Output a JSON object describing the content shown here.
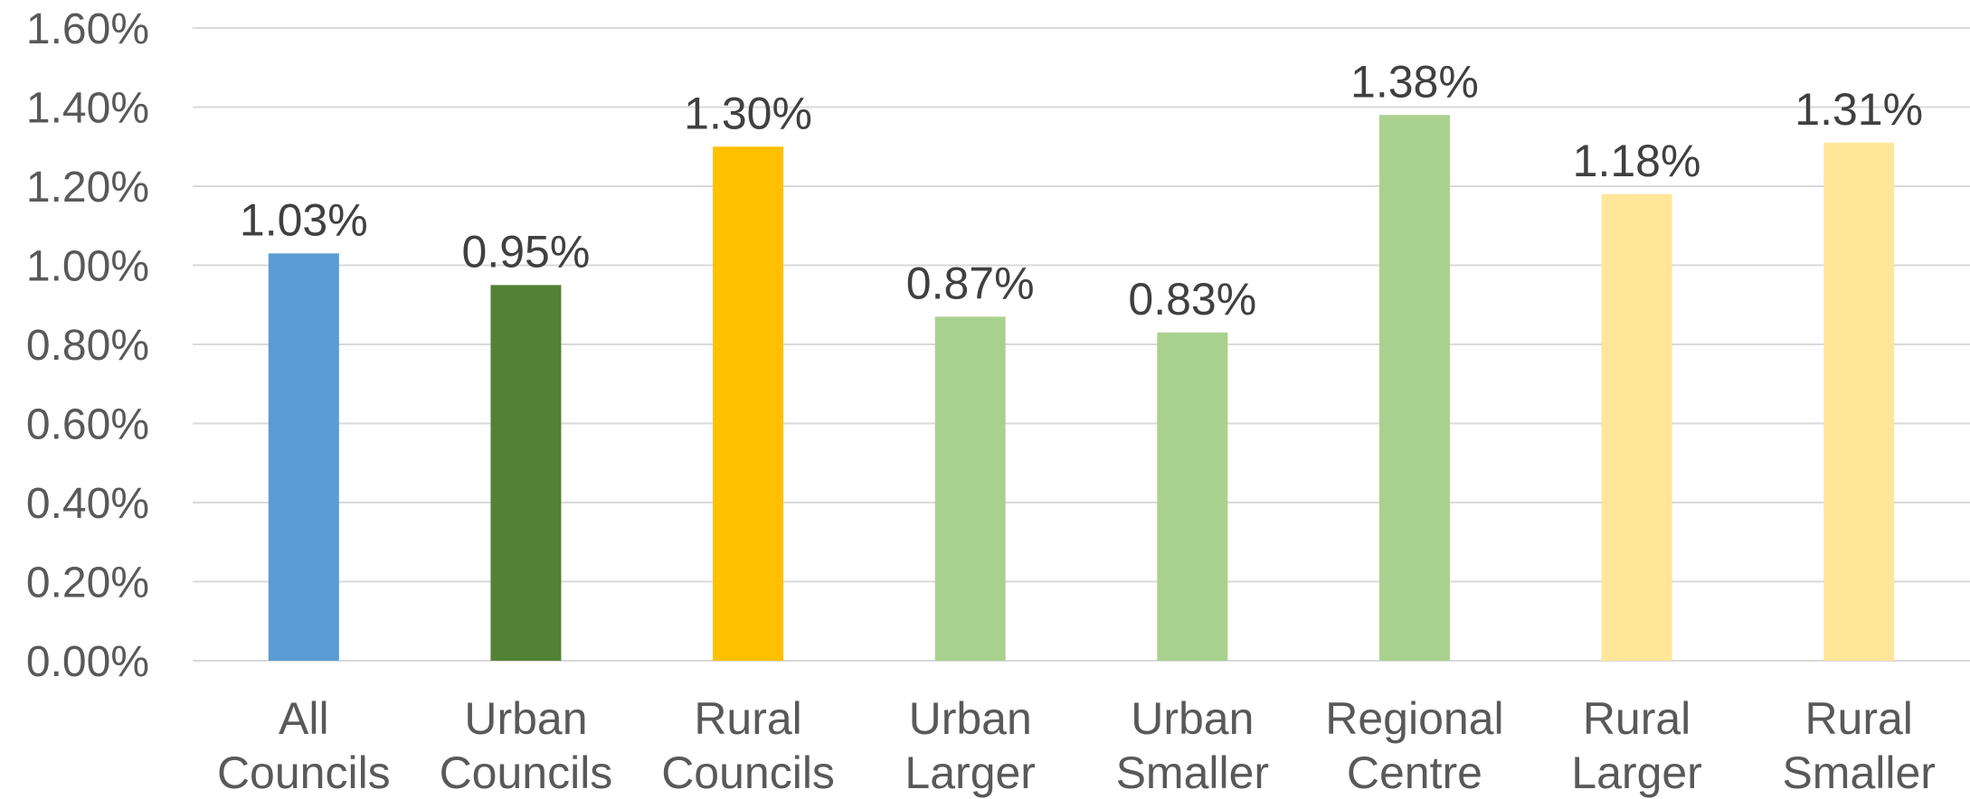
{
  "chart_data": {
    "type": "bar",
    "categories": [
      [
        "All",
        "Councils"
      ],
      [
        "Urban",
        "Councils"
      ],
      [
        "Rural",
        "Councils"
      ],
      [
        "Urban",
        "Larger"
      ],
      [
        "Urban",
        "Smaller"
      ],
      [
        "Regional",
        "Centre"
      ],
      [
        "Rural",
        "Larger"
      ],
      [
        "Rural",
        "Smaller"
      ]
    ],
    "values": [
      1.03,
      0.95,
      1.3,
      0.87,
      0.83,
      1.38,
      1.18,
      1.31
    ],
    "data_labels": [
      "1.03%",
      "0.95%",
      "1.30%",
      "0.87%",
      "0.83%",
      "1.38%",
      "1.18%",
      "1.31%"
    ],
    "colors": [
      "#5b9bd5",
      "#538135",
      "#ffc000",
      "#a9d18e",
      "#a9d18e",
      "#a9d18e",
      "#ffe699",
      "#ffe699"
    ],
    "ylim": [
      0,
      1.6
    ],
    "yticks": [
      0,
      0.2,
      0.4,
      0.6,
      0.8,
      1.0,
      1.2,
      1.4,
      1.6
    ],
    "ytick_labels": [
      "0.00%",
      "0.20%",
      "0.40%",
      "0.60%",
      "0.80%",
      "1.00%",
      "1.20%",
      "1.40%",
      "1.60%"
    ],
    "grid": true,
    "legend": "none",
    "title": "",
    "xlabel": "",
    "ylabel": ""
  }
}
